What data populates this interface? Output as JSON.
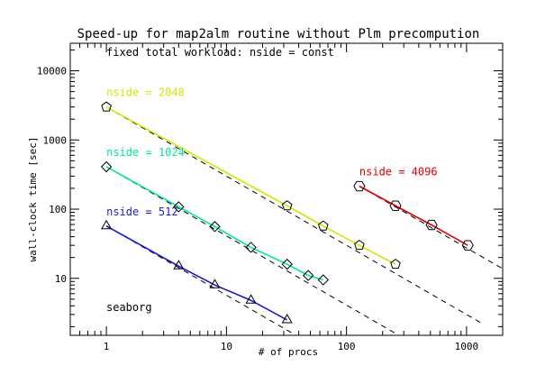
{
  "chart_data": {
    "type": "line",
    "title": "Speed-up for map2alm routine without Plm precompution",
    "subtitle": "fixed total workload: nside = const",
    "xlabel": "# of procs",
    "ylabel": "wall-clock time [sec]",
    "xscale": "log",
    "yscale": "log",
    "xlim": [
      0.5,
      2000
    ],
    "ylim": [
      1.5,
      25000
    ],
    "xticks": [
      {
        "v": 1,
        "label": "1"
      },
      {
        "v": 10,
        "label": "10"
      },
      {
        "v": 100,
        "label": "100"
      },
      {
        "v": 1000,
        "label": "1000"
      }
    ],
    "yticks": [
      {
        "v": 10,
        "label": "10"
      },
      {
        "v": 100,
        "label": "100"
      },
      {
        "v": 1000,
        "label": "1000"
      },
      {
        "v": 10000,
        "label": "10000"
      }
    ],
    "annotation": "seaborg",
    "grid": false,
    "series": [
      {
        "name": "nside = 2048",
        "color": "#d6e600",
        "marker": "pentagon",
        "x": [
          1,
          32,
          64,
          128,
          256
        ],
        "y": [
          3000,
          112,
          57,
          30,
          16
        ],
        "ideal_x_end": 1300
      },
      {
        "name": "nside = 1024",
        "color": "#00e8a0",
        "marker": "diamond",
        "x": [
          1,
          4,
          8,
          16,
          32,
          48,
          64
        ],
        "y": [
          410,
          108,
          56,
          28,
          16,
          11,
          9.5
        ],
        "ideal_x_end": 500
      },
      {
        "name": "nside = 512",
        "color": "#1a1ad6",
        "marker": "triangle",
        "x": [
          1,
          4,
          8,
          16,
          32
        ],
        "y": [
          57,
          15,
          8,
          4.8,
          2.5
        ],
        "ideal_x_end": 50
      },
      {
        "name": "nside = 4096",
        "color": "#e00000",
        "marker": "hexagon",
        "x": [
          128,
          256,
          512,
          1024
        ],
        "y": [
          215,
          112,
          59,
          30
        ],
        "ideal_x_end": 2000
      }
    ]
  }
}
